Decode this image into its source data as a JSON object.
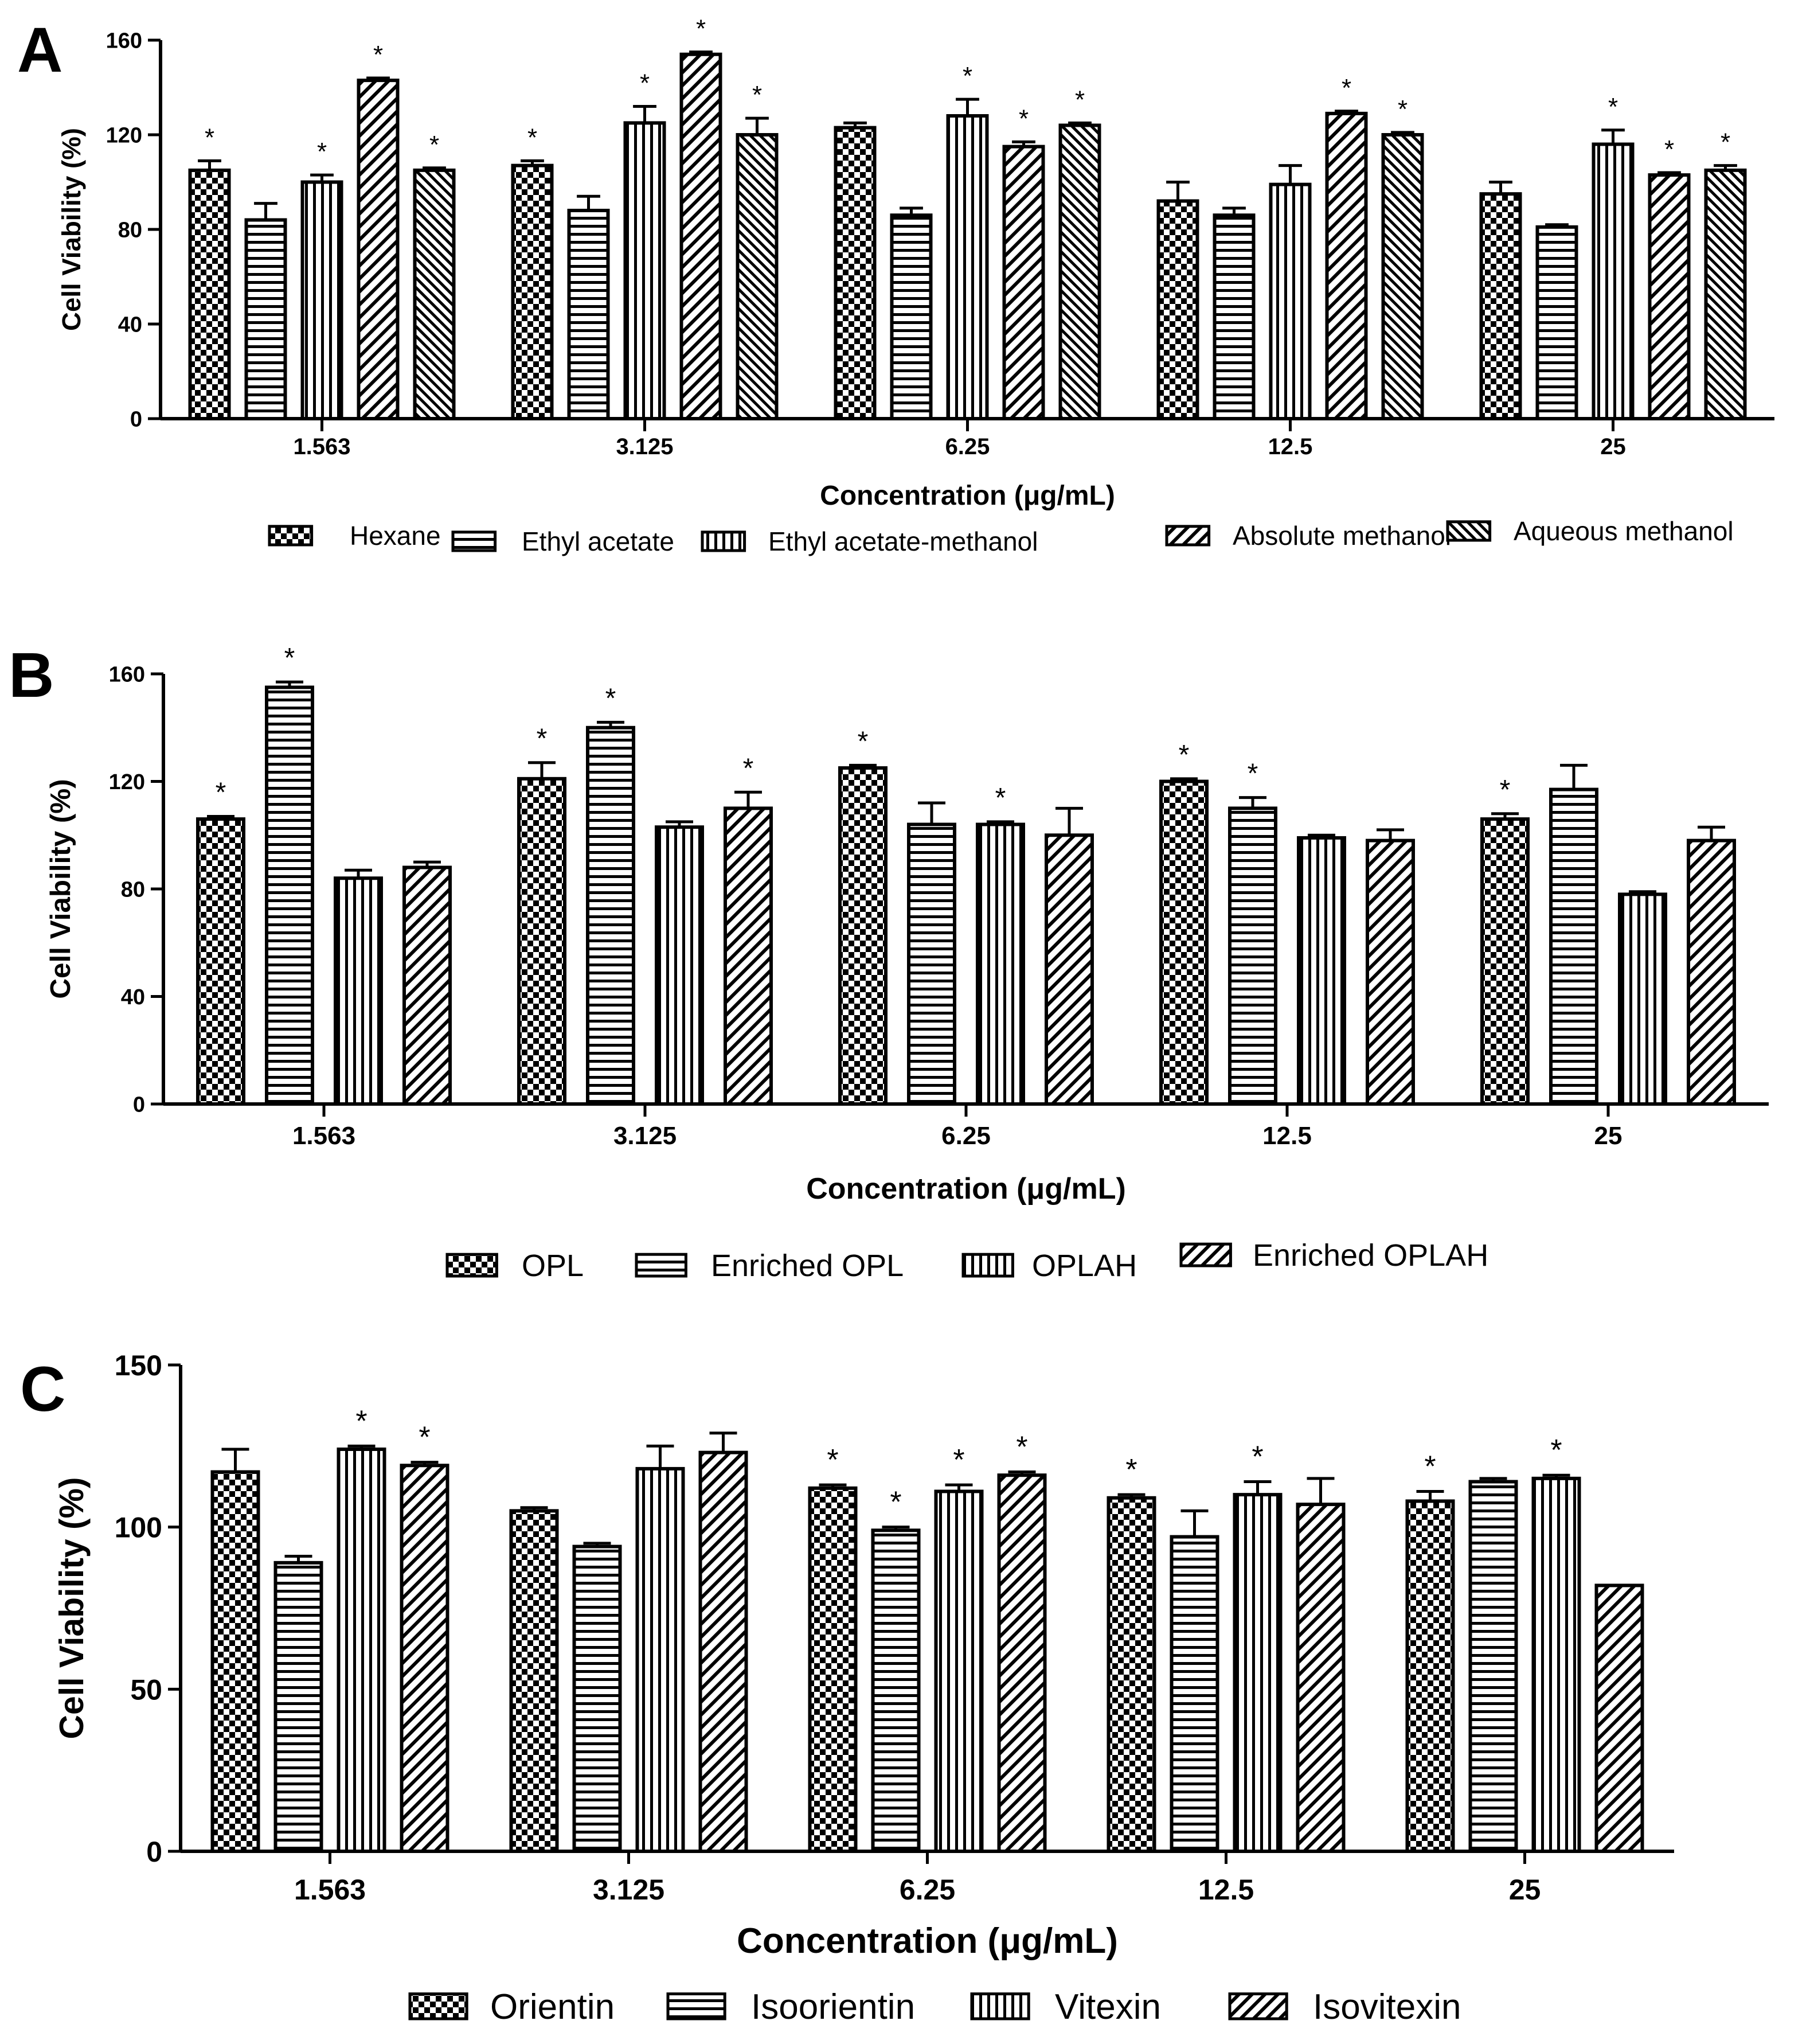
{
  "chart_data": [
    {
      "type": "bar",
      "panel_label": "A",
      "ylabel": "Cell Viability (%)",
      "xlabel": "Concentration (μg/mL)",
      "ylim": [
        0,
        160
      ],
      "yticks": [
        "0",
        "40",
        "80",
        "120",
        "160"
      ],
      "categories": [
        "1.563",
        "3.125",
        "6.25",
        "12.5",
        "25"
      ],
      "legend_position": "bottom",
      "series": [
        {
          "name": "Hexane",
          "pattern": "checker",
          "values": [
            105,
            107,
            123,
            92,
            95
          ],
          "errors": [
            4,
            2,
            2,
            8,
            5
          ],
          "significant": [
            true,
            true,
            false,
            false,
            false
          ]
        },
        {
          "name": "Ethyl acetate",
          "pattern": "hlines",
          "values": [
            84,
            88,
            86,
            86,
            81
          ],
          "errors": [
            7,
            6,
            3,
            3,
            1
          ],
          "significant": [
            false,
            false,
            false,
            false,
            false
          ]
        },
        {
          "name": "Ethyl acetate-methanol",
          "pattern": "vlines",
          "values": [
            100,
            125,
            128,
            99,
            116
          ],
          "errors": [
            3,
            7,
            7,
            8,
            6
          ],
          "significant": [
            true,
            true,
            true,
            false,
            true
          ]
        },
        {
          "name": "Absolute methanol",
          "pattern": "diag",
          "values": [
            143,
            154,
            115,
            129,
            103
          ],
          "errors": [
            1,
            1,
            2,
            1,
            1
          ],
          "significant": [
            true,
            true,
            true,
            true,
            true
          ]
        },
        {
          "name": "Aqueous methanol",
          "pattern": "diag-dense",
          "values": [
            105,
            120,
            124,
            120,
            105
          ],
          "errors": [
            1,
            7,
            1,
            1,
            2
          ],
          "significant": [
            true,
            true,
            true,
            true,
            true
          ]
        }
      ],
      "significance_marker": "*"
    },
    {
      "type": "bar",
      "panel_label": "B",
      "ylabel": "Cell Viability (%)",
      "xlabel": "Concentration (μg/mL)",
      "ylim": [
        0,
        160
      ],
      "yticks": [
        "0",
        "40",
        "80",
        "120",
        "160"
      ],
      "categories": [
        "1.563",
        "3.125",
        "6.25",
        "12.5",
        "25"
      ],
      "legend_position": "bottom",
      "series": [
        {
          "name": "OPL",
          "pattern": "checker",
          "values": [
            106,
            121,
            125,
            120,
            106
          ],
          "errors": [
            1,
            6,
            1,
            1,
            2
          ],
          "significant": [
            true,
            true,
            true,
            true,
            true
          ]
        },
        {
          "name": "Enriched OPL",
          "pattern": "hlines",
          "values": [
            155,
            140,
            104,
            110,
            117
          ],
          "errors": [
            2,
            2,
            8,
            4,
            9
          ],
          "significant": [
            true,
            true,
            false,
            true,
            false
          ]
        },
        {
          "name": "OPLAH",
          "pattern": "vlines",
          "values": [
            84,
            103,
            104,
            99,
            78
          ],
          "errors": [
            3,
            2,
            1,
            1,
            1
          ],
          "significant": [
            false,
            false,
            true,
            false,
            false
          ]
        },
        {
          "name": "Enriched OPLAH",
          "pattern": "diag",
          "values": [
            88,
            110,
            100,
            98,
            98
          ],
          "errors": [
            2,
            6,
            10,
            4,
            5
          ],
          "significant": [
            false,
            true,
            false,
            false,
            false
          ]
        }
      ],
      "significance_marker": "*"
    },
    {
      "type": "bar",
      "panel_label": "C",
      "ylabel": "Cell Viability (%)",
      "xlabel": "Concentration (μg/mL)",
      "ylim": [
        0,
        150
      ],
      "yticks": [
        "0",
        "50",
        "100",
        "150"
      ],
      "categories": [
        "1.563",
        "3.125",
        "6.25",
        "12.5",
        "25"
      ],
      "legend_position": "bottom",
      "series": [
        {
          "name": "Orientin",
          "pattern": "checker",
          "values": [
            117,
            105,
            112,
            109,
            108
          ],
          "errors": [
            7,
            1,
            1,
            1,
            3
          ],
          "significant": [
            false,
            false,
            true,
            true,
            true
          ]
        },
        {
          "name": "Isoorientin",
          "pattern": "hlines",
          "values": [
            89,
            94,
            99,
            97,
            114
          ],
          "errors": [
            2,
            1,
            1,
            8,
            1
          ],
          "significant": [
            false,
            false,
            true,
            false,
            false
          ]
        },
        {
          "name": "Vitexin",
          "pattern": "vlines",
          "values": [
            124,
            118,
            111,
            110,
            115
          ],
          "errors": [
            1,
            7,
            2,
            4,
            1
          ],
          "significant": [
            true,
            false,
            true,
            true,
            true
          ]
        },
        {
          "name": "Isovitexin",
          "pattern": "diag",
          "values": [
            119,
            123,
            116,
            107,
            82
          ],
          "errors": [
            1,
            6,
            1,
            8,
            0
          ],
          "significant": [
            true,
            false,
            true,
            false,
            false
          ]
        }
      ],
      "significance_marker": "*"
    }
  ]
}
